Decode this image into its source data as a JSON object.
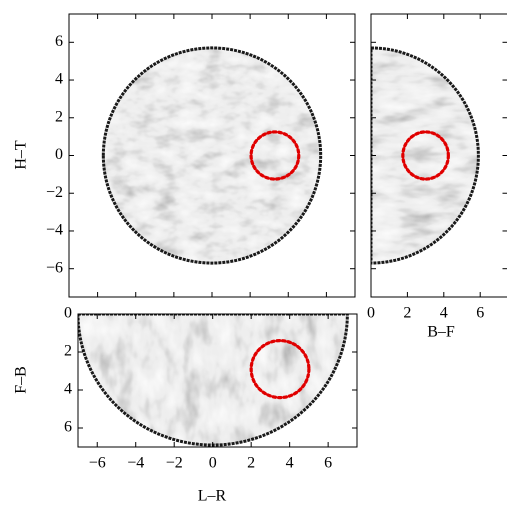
{
  "chart_data": [
    {
      "type": "image",
      "ylabel": "H–T",
      "xlim": [
        -7.5,
        7.5
      ],
      "ylim": [
        -7.5,
        7.5
      ],
      "invert_y": false,
      "show_xtick_labels": false,
      "show_ytick_labels": true,
      "xticks": [
        -6,
        -4,
        -2,
        0,
        2,
        4,
        6
      ],
      "yticks": [
        {
          "value": -6,
          "label": "−6"
        },
        {
          "value": -4,
          "label": "−4"
        },
        {
          "value": -2,
          "label": "−2"
        },
        0,
        2,
        4,
        6
      ],
      "circle": {
        "x": 3.3,
        "y": 0,
        "radius": 1.25,
        "color": "#e00000"
      }
    },
    {
      "type": "image",
      "xlabel": "B–F",
      "xlim": [
        0,
        7.5
      ],
      "ylim": [
        -7.5,
        7.5
      ],
      "invert_y": false,
      "show_xtick_labels": true,
      "show_ytick_labels": false,
      "xticks": [
        0,
        2,
        4,
        6
      ],
      "yticks": [
        -6,
        -4,
        -2,
        0,
        2,
        4,
        6
      ],
      "circle": {
        "x": 3,
        "y": 0,
        "radius": 1.25,
        "color": "#e00000"
      }
    },
    {
      "type": "image",
      "xlabel": "L–R",
      "ylabel": "F–B",
      "xlim": [
        -7,
        7.5
      ],
      "ylim": [
        0,
        7
      ],
      "invert_y": true,
      "show_xtick_labels": true,
      "show_ytick_labels": true,
      "xticks": [
        {
          "value": -6,
          "label": "−6"
        },
        {
          "value": -4,
          "label": "−4"
        },
        {
          "value": -2,
          "label": "−2"
        },
        0,
        2,
        4,
        6
      ],
      "yticks": [
        0,
        2,
        4,
        6
      ],
      "circle": {
        "x": 3.5,
        "y": 2.9,
        "radius": 1.5,
        "color": "#e00000"
      }
    }
  ]
}
